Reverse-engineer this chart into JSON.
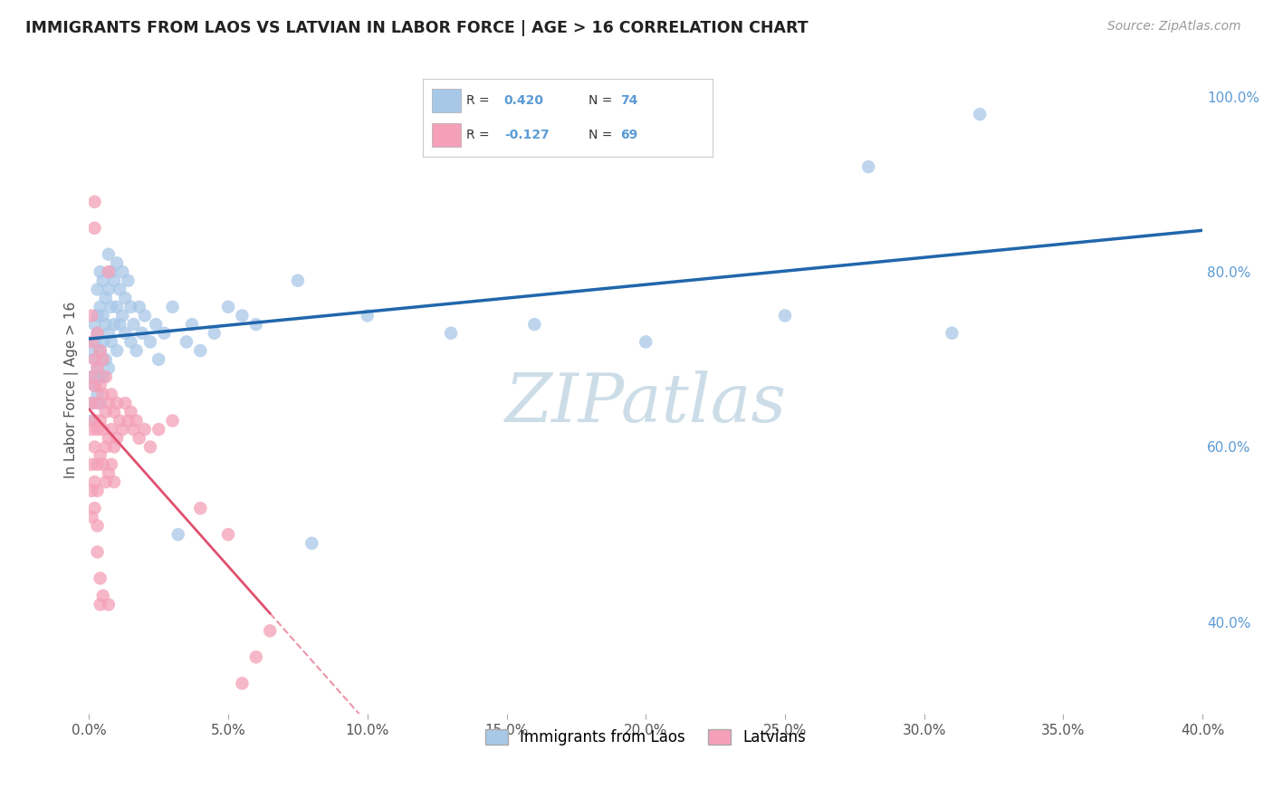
{
  "title": "IMMIGRANTS FROM LAOS VS LATVIAN IN LABOR FORCE | AGE > 16 CORRELATION CHART",
  "source": "Source: ZipAtlas.com",
  "ylabel": "In Labor Force | Age > 16",
  "legend_blue_label": "Immigrants from Laos",
  "legend_pink_label": "Latvians",
  "R_blue": 0.42,
  "N_blue": 74,
  "R_pink": -0.127,
  "N_pink": 69,
  "blue_color": "#a8c8e8",
  "pink_color": "#f4a0b8",
  "blue_line_color": "#2166ac",
  "pink_line_color": "#e05070",
  "background_color": "#ffffff",
  "grid_color": "#cccccc",
  "title_color": "#222222",
  "right_axis_color": "#5b9bd5",
  "watermark_color": "#ccdde8",
  "blue_scatter": [
    [
      0.001,
      0.68
    ],
    [
      0.001,
      0.65
    ],
    [
      0.001,
      0.71
    ],
    [
      0.001,
      0.63
    ],
    [
      0.002,
      0.74
    ],
    [
      0.002,
      0.7
    ],
    [
      0.002,
      0.67
    ],
    [
      0.002,
      0.72
    ],
    [
      0.003,
      0.78
    ],
    [
      0.003,
      0.75
    ],
    [
      0.003,
      0.69
    ],
    [
      0.003,
      0.73
    ],
    [
      0.003,
      0.66
    ],
    [
      0.004,
      0.8
    ],
    [
      0.004,
      0.76
    ],
    [
      0.004,
      0.71
    ],
    [
      0.004,
      0.68
    ],
    [
      0.004,
      0.65
    ],
    [
      0.005,
      0.79
    ],
    [
      0.005,
      0.75
    ],
    [
      0.005,
      0.72
    ],
    [
      0.005,
      0.68
    ],
    [
      0.006,
      0.77
    ],
    [
      0.006,
      0.74
    ],
    [
      0.006,
      0.7
    ],
    [
      0.007,
      0.82
    ],
    [
      0.007,
      0.78
    ],
    [
      0.007,
      0.73
    ],
    [
      0.007,
      0.69
    ],
    [
      0.008,
      0.8
    ],
    [
      0.008,
      0.76
    ],
    [
      0.008,
      0.72
    ],
    [
      0.009,
      0.79
    ],
    [
      0.009,
      0.74
    ],
    [
      0.01,
      0.81
    ],
    [
      0.01,
      0.76
    ],
    [
      0.01,
      0.71
    ],
    [
      0.011,
      0.78
    ],
    [
      0.011,
      0.74
    ],
    [
      0.012,
      0.8
    ],
    [
      0.012,
      0.75
    ],
    [
      0.013,
      0.77
    ],
    [
      0.013,
      0.73
    ],
    [
      0.014,
      0.79
    ],
    [
      0.015,
      0.76
    ],
    [
      0.015,
      0.72
    ],
    [
      0.016,
      0.74
    ],
    [
      0.017,
      0.71
    ],
    [
      0.018,
      0.76
    ],
    [
      0.019,
      0.73
    ],
    [
      0.02,
      0.75
    ],
    [
      0.022,
      0.72
    ],
    [
      0.024,
      0.74
    ],
    [
      0.025,
      0.7
    ],
    [
      0.027,
      0.73
    ],
    [
      0.03,
      0.76
    ],
    [
      0.032,
      0.5
    ],
    [
      0.035,
      0.72
    ],
    [
      0.037,
      0.74
    ],
    [
      0.04,
      0.71
    ],
    [
      0.045,
      0.73
    ],
    [
      0.05,
      0.76
    ],
    [
      0.06,
      0.74
    ],
    [
      0.075,
      0.79
    ],
    [
      0.1,
      0.75
    ],
    [
      0.13,
      0.73
    ],
    [
      0.16,
      0.74
    ],
    [
      0.2,
      0.72
    ],
    [
      0.25,
      0.75
    ],
    [
      0.28,
      0.92
    ],
    [
      0.31,
      0.73
    ],
    [
      0.32,
      0.98
    ],
    [
      0.055,
      0.75
    ],
    [
      0.08,
      0.49
    ]
  ],
  "pink_scatter": [
    [
      0.001,
      0.72
    ],
    [
      0.001,
      0.68
    ],
    [
      0.001,
      0.65
    ],
    [
      0.001,
      0.62
    ],
    [
      0.001,
      0.58
    ],
    [
      0.001,
      0.75
    ],
    [
      0.001,
      0.55
    ],
    [
      0.001,
      0.52
    ],
    [
      0.002,
      0.85
    ],
    [
      0.002,
      0.88
    ],
    [
      0.002,
      0.7
    ],
    [
      0.002,
      0.67
    ],
    [
      0.002,
      0.63
    ],
    [
      0.002,
      0.6
    ],
    [
      0.002,
      0.56
    ],
    [
      0.002,
      0.53
    ],
    [
      0.003,
      0.73
    ],
    [
      0.003,
      0.69
    ],
    [
      0.003,
      0.65
    ],
    [
      0.003,
      0.62
    ],
    [
      0.003,
      0.58
    ],
    [
      0.003,
      0.55
    ],
    [
      0.003,
      0.51
    ],
    [
      0.003,
      0.48
    ],
    [
      0.004,
      0.71
    ],
    [
      0.004,
      0.67
    ],
    [
      0.004,
      0.63
    ],
    [
      0.004,
      0.59
    ],
    [
      0.004,
      0.45
    ],
    [
      0.004,
      0.42
    ],
    [
      0.005,
      0.7
    ],
    [
      0.005,
      0.66
    ],
    [
      0.005,
      0.62
    ],
    [
      0.005,
      0.58
    ],
    [
      0.005,
      0.43
    ],
    [
      0.006,
      0.68
    ],
    [
      0.006,
      0.64
    ],
    [
      0.006,
      0.6
    ],
    [
      0.006,
      0.56
    ],
    [
      0.007,
      0.8
    ],
    [
      0.007,
      0.65
    ],
    [
      0.007,
      0.61
    ],
    [
      0.007,
      0.57
    ],
    [
      0.007,
      0.42
    ],
    [
      0.008,
      0.66
    ],
    [
      0.008,
      0.62
    ],
    [
      0.008,
      0.58
    ],
    [
      0.009,
      0.64
    ],
    [
      0.009,
      0.6
    ],
    [
      0.009,
      0.56
    ],
    [
      0.01,
      0.65
    ],
    [
      0.01,
      0.61
    ],
    [
      0.011,
      0.63
    ],
    [
      0.012,
      0.62
    ],
    [
      0.013,
      0.65
    ],
    [
      0.014,
      0.63
    ],
    [
      0.015,
      0.64
    ],
    [
      0.016,
      0.62
    ],
    [
      0.017,
      0.63
    ],
    [
      0.018,
      0.61
    ],
    [
      0.02,
      0.62
    ],
    [
      0.022,
      0.6
    ],
    [
      0.025,
      0.62
    ],
    [
      0.03,
      0.63
    ],
    [
      0.04,
      0.53
    ],
    [
      0.05,
      0.5
    ],
    [
      0.055,
      0.33
    ],
    [
      0.06,
      0.36
    ],
    [
      0.065,
      0.39
    ]
  ],
  "xlim": [
    0.0,
    0.4
  ],
  "ylim": [
    0.295,
    1.035
  ],
  "y_ticks_right": [
    0.4,
    0.6,
    0.8,
    1.0
  ],
  "x_ticks": [
    0.0,
    0.05,
    0.1,
    0.15,
    0.2,
    0.25,
    0.3,
    0.35,
    0.4
  ]
}
